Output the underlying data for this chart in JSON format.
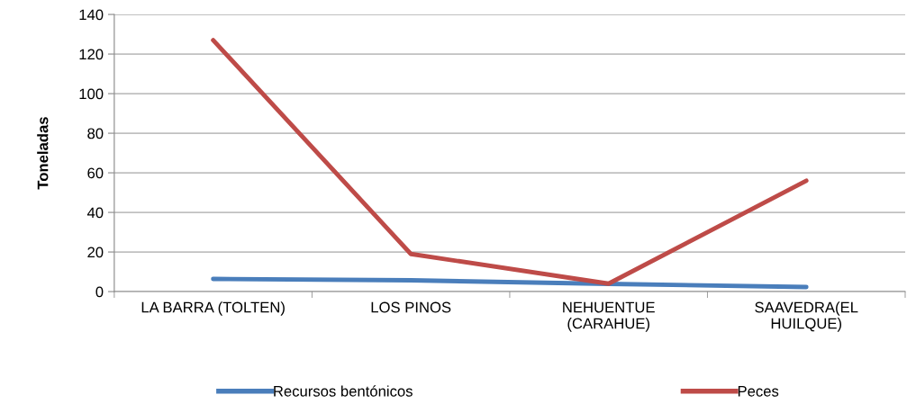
{
  "chart_data": {
    "type": "line",
    "ylabel": "Toneladas",
    "categories": [
      "LA BARRA (TOLTEN)",
      "LOS PINOS",
      "NEHUENTUE\n(CARAHUE)",
      "SAAVEDRA(EL\nHUILQUE)"
    ],
    "series": [
      {
        "name": "Recursos bentónicos",
        "color": "#4a7ebb",
        "values": [
          6.4,
          5.7,
          3.9,
          2.3
        ]
      },
      {
        "name": "Peces",
        "color": "#be4b48",
        "values": [
          127,
          19,
          4,
          56
        ]
      }
    ],
    "ylim": [
      0,
      140
    ],
    "yticks": [
      0,
      20,
      40,
      60,
      80,
      100,
      120,
      140
    ],
    "grid": "y",
    "legend": "bottom",
    "marker": "none",
    "line_style": "solid"
  }
}
